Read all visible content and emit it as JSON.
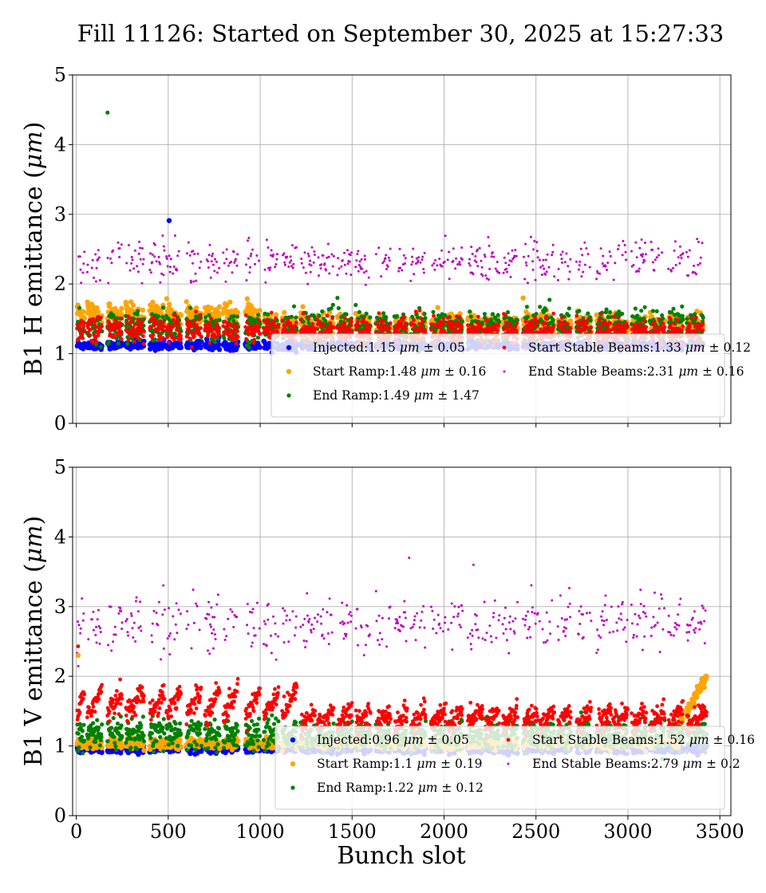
{
  "title": "Fill 11126: Started on September 30, 2025 at 15:27:33",
  "colors": {
    "Injected": "#0000ff",
    "Start Ramp": "#ffa500",
    "End Ramp": "#008000",
    "Start Stable Beams": "#ff0000",
    "End Stable Beams": "#bf00bf"
  },
  "chart_data": [
    {
      "type": "scatter",
      "panel": "top",
      "ylabel_prefix": "B1 H emittance (",
      "ylabel_unit": "μm",
      "ylabel_suffix": ")",
      "xlabel": "",
      "xlim": [
        -20,
        3560
      ],
      "ylim": [
        0,
        5
      ],
      "xticks": [
        0,
        500,
        1000,
        1500,
        2000,
        2500,
        3000,
        3500
      ],
      "yticks": [
        0,
        1,
        2,
        3,
        4,
        5
      ],
      "grid": true,
      "legend_position": "lower-right",
      "bunch_trains": [
        [
          5,
          45
        ],
        [
          60,
          140
        ],
        [
          170,
          250
        ],
        [
          270,
          370
        ],
        [
          400,
          480
        ],
        [
          490,
          570
        ],
        [
          600,
          680
        ],
        [
          700,
          780
        ],
        [
          800,
          880
        ],
        [
          920,
          1000
        ],
        [
          1020,
          1100
        ],
        [
          1120,
          1200
        ],
        [
          1220,
          1300
        ],
        [
          1310,
          1400
        ],
        [
          1420,
          1500
        ],
        [
          1520,
          1600
        ],
        [
          1630,
          1710
        ],
        [
          1730,
          1800
        ],
        [
          1820,
          1900
        ],
        [
          1930,
          2010
        ],
        [
          2020,
          2100
        ],
        [
          2130,
          2210
        ],
        [
          2220,
          2300
        ],
        [
          2320,
          2400
        ],
        [
          2430,
          2510
        ],
        [
          2520,
          2600
        ],
        [
          2620,
          2690
        ],
        [
          2720,
          2800
        ],
        [
          2830,
          2910
        ],
        [
          2920,
          3000
        ],
        [
          3020,
          3100
        ],
        [
          3120,
          3200
        ],
        [
          3220,
          3300
        ],
        [
          3320,
          3410
        ]
      ],
      "series": [
        {
          "name": "Injected",
          "mean": 1.15,
          "std": 0.05,
          "label_value": "1.15",
          "label_std": "0.05",
          "marker_size": 3.2
        },
        {
          "name": "Start Ramp",
          "mean": 1.48,
          "std": 0.16,
          "label_value": "1.48",
          "label_std": "0.16",
          "marker_size": 3.2
        },
        {
          "name": "End Ramp",
          "mean": 1.49,
          "std": 1.47,
          "label_value": "1.49",
          "label_std": "1.47",
          "marker_size": 2.6
        },
        {
          "name": "Start Stable Beams",
          "mean": 1.33,
          "std": 0.12,
          "label_value": "1.33",
          "label_std": "0.12",
          "marker_size": 2.4
        },
        {
          "name": "End Stable Beams",
          "mean": 2.31,
          "std": 0.16,
          "label_value": "2.31",
          "label_std": "0.16",
          "marker_size": 1.5
        }
      ],
      "outliers": [
        {
          "series": "End Ramp",
          "x": 170,
          "y": 4.46
        },
        {
          "series": "Injected",
          "x": 505,
          "y": 2.91
        },
        {
          "series": "Start Ramp",
          "x": 2430,
          "y": 1.8
        }
      ]
    },
    {
      "type": "scatter",
      "panel": "bottom",
      "ylabel_prefix": "B1 V emittance (",
      "ylabel_unit": "μm",
      "ylabel_suffix": ")",
      "xlabel": "Bunch slot",
      "xlim": [
        -20,
        3560
      ],
      "ylim": [
        0,
        5
      ],
      "xticks": [
        0,
        500,
        1000,
        1500,
        2000,
        2500,
        3000,
        3500
      ],
      "yticks": [
        0,
        1,
        2,
        3,
        4,
        5
      ],
      "grid": true,
      "legend_position": "lower-right",
      "bunch_trains": [
        [
          5,
          45
        ],
        [
          60,
          140
        ],
        [
          170,
          250
        ],
        [
          270,
          370
        ],
        [
          400,
          480
        ],
        [
          490,
          570
        ],
        [
          600,
          680
        ],
        [
          700,
          780
        ],
        [
          800,
          880
        ],
        [
          920,
          1000
        ],
        [
          1020,
          1100
        ],
        [
          1120,
          1200
        ],
        [
          1220,
          1300
        ],
        [
          1310,
          1400
        ],
        [
          1420,
          1500
        ],
        [
          1520,
          1600
        ],
        [
          1630,
          1710
        ],
        [
          1730,
          1800
        ],
        [
          1820,
          1900
        ],
        [
          1930,
          2010
        ],
        [
          2020,
          2100
        ],
        [
          2130,
          2210
        ],
        [
          2220,
          2300
        ],
        [
          2320,
          2400
        ],
        [
          2430,
          2510
        ],
        [
          2520,
          2600
        ],
        [
          2620,
          2690
        ],
        [
          2720,
          2800
        ],
        [
          2830,
          2910
        ],
        [
          2920,
          3000
        ],
        [
          3020,
          3100
        ],
        [
          3120,
          3200
        ],
        [
          3220,
          3300
        ],
        [
          3320,
          3430
        ]
      ],
      "series": [
        {
          "name": "Injected",
          "mean": 0.96,
          "std": 0.05,
          "label_value": "0.96",
          "label_std": "0.05",
          "marker_size": 3.2
        },
        {
          "name": "Start Ramp",
          "mean": 1.1,
          "std": 0.19,
          "label_value": "1.1",
          "label_std": "0.19",
          "marker_size": 3.2
        },
        {
          "name": "End Ramp",
          "mean": 1.22,
          "std": 0.12,
          "label_value": "1.22",
          "label_std": "0.12",
          "marker_size": 2.6
        },
        {
          "name": "Start Stable Beams",
          "mean": 1.52,
          "std": 0.16,
          "label_value": "1.52",
          "label_std": "0.16",
          "marker_size": 2.4
        },
        {
          "name": "End Stable Beams",
          "mean": 2.79,
          "std": 0.2,
          "label_value": "2.79",
          "label_std": "0.2",
          "marker_size": 1.5
        }
      ],
      "outliers": [
        {
          "series": "End Stable Beams",
          "x": 1810,
          "y": 3.7
        },
        {
          "series": "End Stable Beams",
          "x": 2160,
          "y": 3.6
        },
        {
          "series": "Start Ramp",
          "x": 10,
          "y": 2.3
        },
        {
          "series": "Start Stable Beams",
          "x": 10,
          "y": 2.43
        }
      ]
    }
  ]
}
